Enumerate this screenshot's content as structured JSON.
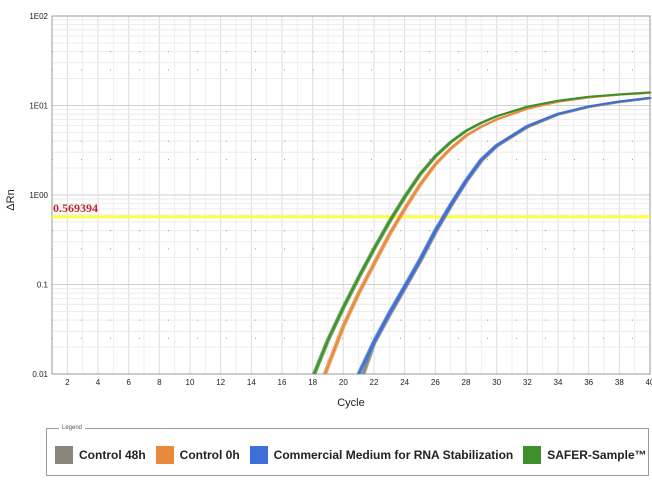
{
  "chart_data": {
    "type": "line",
    "title": "",
    "xlabel": "Cycle",
    "ylabel": "ΔRn",
    "yscale": "log",
    "xlim": [
      1,
      40
    ],
    "ylim": [
      0.01,
      100
    ],
    "x_ticks": [
      "2",
      "4",
      "6",
      "8",
      "10",
      "12",
      "14",
      "16",
      "18",
      "20",
      "22",
      "24",
      "26",
      "28",
      "30",
      "32",
      "34",
      "36",
      "38",
      "40"
    ],
    "y_ticks": [
      "0.01",
      "0.1",
      "1E00",
      "1E01",
      "1E02"
    ],
    "grid": true,
    "threshold": {
      "value": 0.569394,
      "label": "0.569394",
      "color": "#ffff44"
    },
    "legend_position": "bottom",
    "series": [
      {
        "name": "Control 48h",
        "color": "#8b8679",
        "x": [
          21.3,
          22,
          23,
          24,
          25,
          26,
          27,
          28,
          29,
          30,
          32,
          34,
          36,
          38,
          40
        ],
        "y": [
          0.01,
          0.022,
          0.045,
          0.09,
          0.18,
          0.38,
          0.75,
          1.4,
          2.4,
          3.5,
          5.7,
          7.9,
          9.6,
          10.9,
          12.0
        ]
      },
      {
        "name": "Control 0h",
        "color": "#e88a3c",
        "x": [
          18.8,
          20,
          21,
          22,
          23,
          24,
          25,
          26,
          27,
          28,
          29,
          30,
          32,
          34,
          36,
          38,
          40
        ],
        "y": [
          0.01,
          0.034,
          0.08,
          0.17,
          0.36,
          0.7,
          1.3,
          2.2,
          3.3,
          4.6,
          5.8,
          7.0,
          9.2,
          11.0,
          12.3,
          13.2,
          13.8
        ]
      },
      {
        "name": "Commercial Medium for RNA Stabilization",
        "color": "#3e6fd8",
        "x": [
          21.0,
          22,
          23,
          24,
          25,
          26,
          27,
          28,
          29,
          30,
          32,
          34,
          36,
          38,
          40
        ],
        "y": [
          0.01,
          0.023,
          0.048,
          0.095,
          0.19,
          0.4,
          0.78,
          1.45,
          2.5,
          3.6,
          5.9,
          8.1,
          9.8,
          11.1,
          12.2
        ]
      },
      {
        "name": "SAFER-Sample™",
        "color": "#3f8f2e",
        "x": [
          18.1,
          19,
          20,
          21,
          22,
          23,
          24,
          25,
          26,
          27,
          28,
          29,
          30,
          32,
          34,
          36,
          38,
          40
        ],
        "y": [
          0.01,
          0.024,
          0.055,
          0.12,
          0.25,
          0.5,
          0.95,
          1.7,
          2.7,
          3.9,
          5.2,
          6.4,
          7.6,
          9.7,
          11.3,
          12.5,
          13.3,
          14.0
        ]
      }
    ]
  },
  "legend": {
    "title": "Legend",
    "items": [
      {
        "label": "Control 48h",
        "color": "#8b8679"
      },
      {
        "label": "Control 0h",
        "color": "#e88a3c"
      },
      {
        "label": "Commercial Medium for RNA Stabilization",
        "color": "#3e6fd8"
      },
      {
        "label": "SAFER-Sample™",
        "color": "#3f8f2e"
      }
    ]
  }
}
